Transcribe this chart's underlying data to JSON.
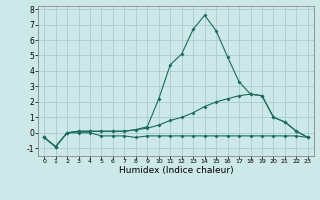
{
  "xlabel": "Humidex (Indice chaleur)",
  "bg_color": "#cce8e8",
  "grid_color": "#aacccc",
  "line_color": "#1a6b5a",
  "xlim": [
    -0.5,
    23.5
  ],
  "ylim": [
    -1.5,
    8.2
  ],
  "xticks": [
    0,
    1,
    2,
    3,
    4,
    5,
    6,
    7,
    8,
    9,
    10,
    11,
    12,
    13,
    14,
    15,
    16,
    17,
    18,
    19,
    20,
    21,
    22,
    23
  ],
  "yticks": [
    -1,
    0,
    1,
    2,
    3,
    4,
    5,
    6,
    7,
    8
  ],
  "line1_y": [
    -0.3,
    -0.9,
    0.0,
    0.0,
    0.0,
    -0.2,
    -0.2,
    -0.2,
    -0.3,
    -0.2,
    -0.2,
    -0.2,
    -0.2,
    -0.2,
    -0.2,
    -0.2,
    -0.2,
    -0.2,
    -0.2,
    -0.2,
    -0.2,
    -0.2,
    -0.2,
    -0.3
  ],
  "line2_y": [
    -0.3,
    -0.9,
    0.0,
    0.1,
    0.1,
    0.1,
    0.1,
    0.1,
    0.2,
    0.3,
    0.5,
    0.8,
    1.0,
    1.3,
    1.7,
    2.0,
    2.2,
    2.4,
    2.5,
    2.4,
    1.0,
    0.7,
    0.1,
    -0.3
  ],
  "line3_y": [
    -0.3,
    -0.9,
    0.0,
    0.1,
    0.1,
    0.1,
    0.1,
    0.1,
    0.2,
    0.4,
    2.2,
    4.4,
    5.1,
    6.7,
    7.6,
    6.6,
    4.9,
    3.3,
    2.5,
    2.4,
    1.0,
    0.7,
    0.1,
    -0.3
  ]
}
